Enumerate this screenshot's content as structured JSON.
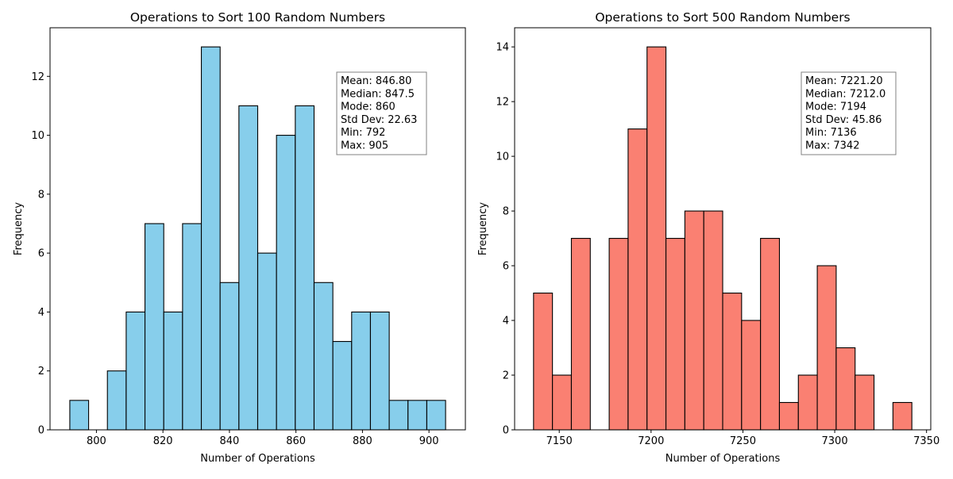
{
  "chart_data": [
    {
      "type": "bar",
      "title": "Operations to Sort 100 Random Numbers",
      "xlabel": "Number of Operations",
      "ylabel": "Frequency",
      "color": "#87CEEB",
      "edge_color": "#000000",
      "xlim": [
        786.05,
        910.95
      ],
      "ylim": [
        0,
        13.65
      ],
      "bin_edges": [
        792,
        797.65,
        803.3,
        808.95,
        814.6,
        820.25,
        825.9,
        831.55,
        837.2,
        842.85,
        848.5,
        854.15,
        859.8,
        865.45,
        871.1,
        876.75,
        882.4,
        888.05,
        893.7,
        899.35,
        905
      ],
      "values": [
        1,
        0,
        2,
        4,
        7,
        4,
        7,
        13,
        5,
        11,
        6,
        10,
        11,
        5,
        3,
        4,
        4,
        1,
        1,
        1
      ],
      "xticks": [
        800,
        820,
        840,
        860,
        880,
        900
      ],
      "xtick_labels": [
        "800",
        "820",
        "840",
        "860",
        "880",
        "900"
      ],
      "yticks": [
        0,
        2,
        4,
        6,
        8,
        10,
        12
      ],
      "ytick_labels": [
        "0",
        "2",
        "4",
        "6",
        "8",
        "10",
        "12"
      ],
      "stats": [
        "Mean: 846.80",
        "Median: 847.5",
        "Mode: 860",
        "Std Dev: 22.63",
        "Min: 792",
        "Max: 905"
      ]
    },
    {
      "type": "bar",
      "title": "Operations to Sort 500 Random Numbers",
      "xlabel": "Number of Operations",
      "ylabel": "Frequency",
      "color": "#FA8072",
      "edge_color": "#000000",
      "xlim": [
        7125.7,
        7352.3
      ],
      "ylim": [
        0,
        14.7
      ],
      "bin_edges": [
        7136,
        7146.3,
        7156.6,
        7166.9,
        7177.2,
        7187.5,
        7197.8,
        7208.1,
        7218.4,
        7228.7,
        7239,
        7249.3,
        7259.6,
        7269.9,
        7280.2,
        7290.5,
        7300.8,
        7311.1,
        7321.4,
        7331.7,
        7342
      ],
      "values": [
        5,
        2,
        7,
        0,
        7,
        11,
        14,
        7,
        8,
        8,
        5,
        4,
        7,
        1,
        2,
        6,
        3,
        2,
        0,
        1
      ],
      "xticks": [
        7150,
        7200,
        7250,
        7300,
        7350
      ],
      "xtick_labels": [
        "7150",
        "7200",
        "7250",
        "7300",
        "7350"
      ],
      "yticks": [
        0,
        2,
        4,
        6,
        8,
        10,
        12,
        14
      ],
      "ytick_labels": [
        "0",
        "2",
        "4",
        "6",
        "8",
        "10",
        "12",
        "14"
      ],
      "stats": [
        "Mean: 7221.20",
        "Median: 7212.0",
        "Mode: 7194",
        "Std Dev: 45.86",
        "Min: 7136",
        "Max: 7342"
      ]
    }
  ]
}
